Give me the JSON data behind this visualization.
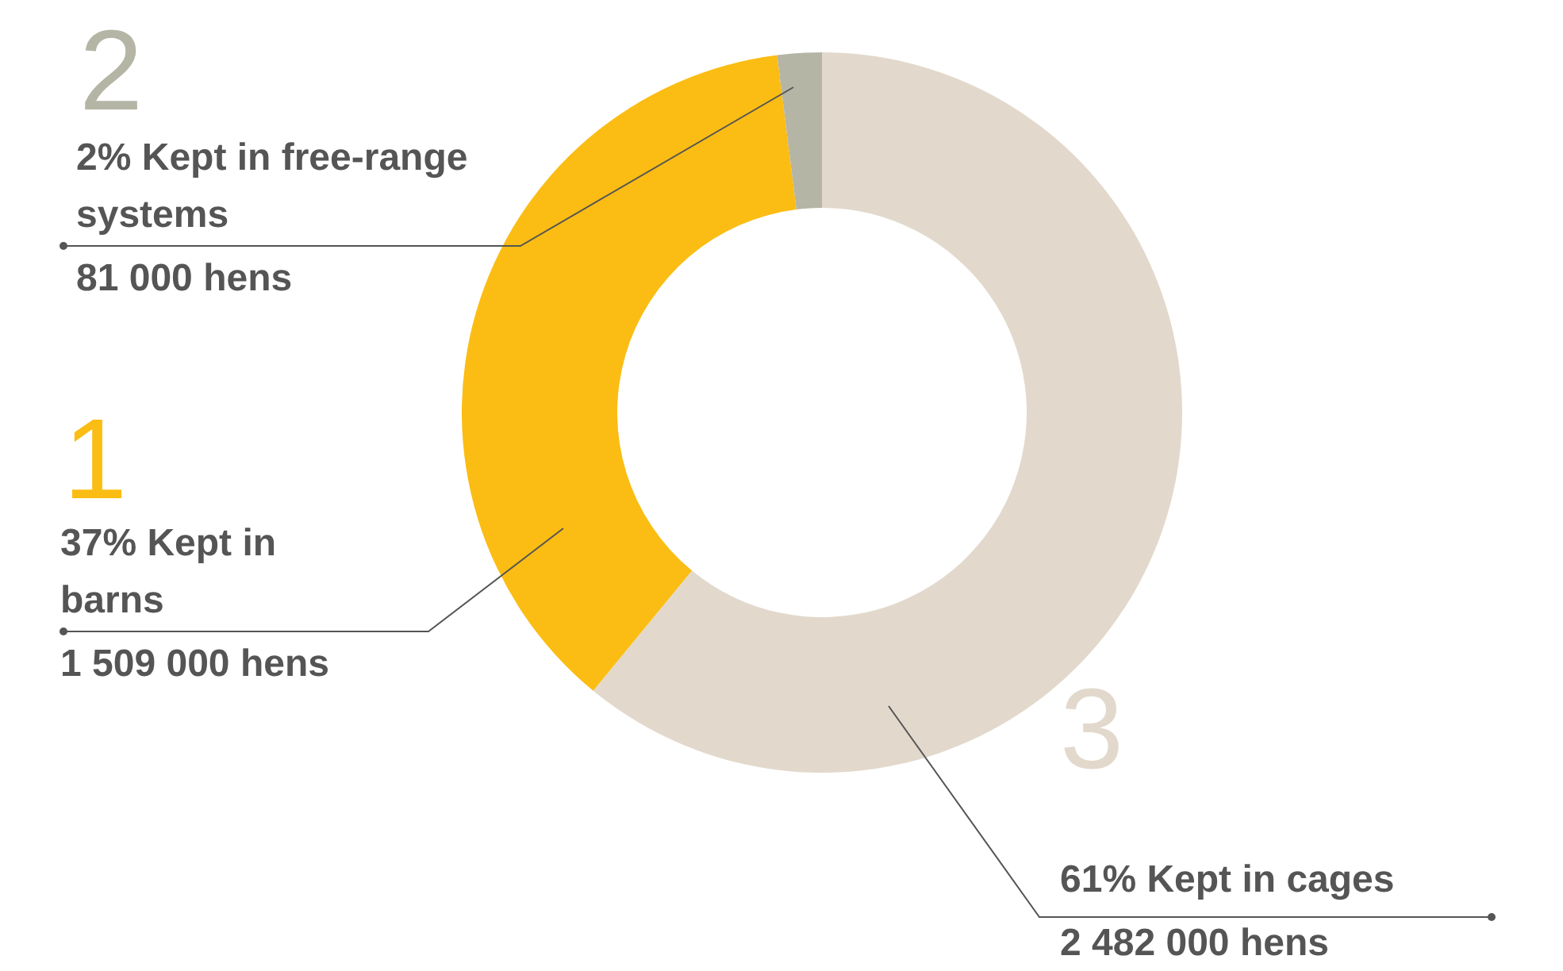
{
  "chart_data": {
    "type": "donut",
    "categories": [
      "61% Kept in cages",
      "37% Kept in barns",
      "2% Kept in free-range systems"
    ],
    "values": [
      2482000,
      1509000,
      81000
    ],
    "value_labels": [
      "2 482 000 hens",
      "1 509 000 hens",
      "81 000 hens"
    ],
    "colors": [
      "#e2d9cc",
      "#fbbd13",
      "#b5b5a5"
    ],
    "annotations": [
      "3",
      "1",
      "2"
    ],
    "legend": false
  }
}
